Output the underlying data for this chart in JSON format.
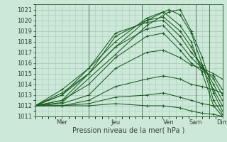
{
  "background_color": "#cce8d8",
  "grid_color": "#aaccbb",
  "line_color": "#1a5c20",
  "ylim": [
    1011,
    1021.5
  ],
  "xlim": [
    0,
    168
  ],
  "yticks": [
    1011,
    1012,
    1013,
    1014,
    1015,
    1016,
    1017,
    1018,
    1019,
    1020,
    1021
  ],
  "xtick_positions": [
    24,
    72,
    120,
    144,
    168
  ],
  "xtick_labels": [
    "Mer",
    "Jeu",
    "Ven",
    "Sam",
    "Dim"
  ],
  "xlabel": "Pression niveau de la mer( hPa )",
  "xlabel_fontsize": 7,
  "tick_fontsize": 6,
  "lines": [
    {
      "points": [
        [
          0,
          1012.0
        ],
        [
          24,
          1012.3
        ],
        [
          72,
          1016.8
        ],
        [
          100,
          1019.5
        ],
        [
          120,
          1020.8
        ],
        [
          130,
          1021.0
        ],
        [
          140,
          1019.0
        ],
        [
          150,
          1016.5
        ],
        [
          160,
          1013.2
        ],
        [
          168,
          1011.5
        ]
      ]
    },
    {
      "points": [
        [
          0,
          1012.0
        ],
        [
          24,
          1012.5
        ],
        [
          72,
          1017.5
        ],
        [
          100,
          1020.0
        ],
        [
          120,
          1021.0
        ],
        [
          130,
          1020.5
        ],
        [
          140,
          1018.8
        ],
        [
          150,
          1015.8
        ],
        [
          160,
          1012.5
        ],
        [
          168,
          1011.2
        ]
      ]
    },
    {
      "points": [
        [
          0,
          1012.0
        ],
        [
          24,
          1013.0
        ],
        [
          72,
          1018.0
        ],
        [
          100,
          1020.2
        ],
        [
          115,
          1020.8
        ],
        [
          130,
          1019.5
        ],
        [
          140,
          1018.0
        ],
        [
          150,
          1015.0
        ],
        [
          160,
          1012.0
        ],
        [
          168,
          1011.0
        ]
      ]
    },
    {
      "points": [
        [
          0,
          1012.0
        ],
        [
          24,
          1013.2
        ],
        [
          48,
          1015.0
        ],
        [
          72,
          1018.5
        ],
        [
          100,
          1020.0
        ],
        [
          115,
          1020.3
        ],
        [
          130,
          1019.0
        ],
        [
          140,
          1017.5
        ],
        [
          150,
          1015.5
        ],
        [
          160,
          1013.5
        ],
        [
          168,
          1012.0
        ]
      ]
    },
    {
      "points": [
        [
          0,
          1012.0
        ],
        [
          24,
          1013.5
        ],
        [
          48,
          1015.5
        ],
        [
          72,
          1018.8
        ],
        [
          100,
          1019.8
        ],
        [
          115,
          1020.0
        ],
        [
          130,
          1018.5
        ],
        [
          140,
          1017.0
        ],
        [
          150,
          1015.8
        ],
        [
          160,
          1014.0
        ],
        [
          168,
          1012.5
        ]
      ]
    },
    {
      "points": [
        [
          0,
          1012.0
        ],
        [
          24,
          1013.0
        ],
        [
          48,
          1015.0
        ],
        [
          72,
          1017.5
        ],
        [
          100,
          1019.2
        ],
        [
          115,
          1019.5
        ],
        [
          130,
          1017.8
        ],
        [
          140,
          1016.5
        ],
        [
          150,
          1015.5
        ],
        [
          160,
          1014.5
        ],
        [
          168,
          1013.0
        ]
      ]
    },
    {
      "points": [
        [
          0,
          1012.0
        ],
        [
          24,
          1012.5
        ],
        [
          48,
          1014.0
        ],
        [
          72,
          1016.5
        ],
        [
          100,
          1018.5
        ],
        [
          115,
          1018.8
        ],
        [
          130,
          1017.2
        ],
        [
          140,
          1016.0
        ],
        [
          150,
          1015.2
        ],
        [
          160,
          1014.8
        ],
        [
          168,
          1013.5
        ]
      ]
    },
    {
      "points": [
        [
          0,
          1012.0
        ],
        [
          24,
          1012.2
        ],
        [
          48,
          1013.0
        ],
        [
          72,
          1015.5
        ],
        [
          100,
          1017.0
        ],
        [
          115,
          1017.2
        ],
        [
          130,
          1016.5
        ],
        [
          140,
          1015.8
        ],
        [
          150,
          1015.5
        ],
        [
          160,
          1015.0
        ],
        [
          168,
          1014.5
        ]
      ]
    },
    {
      "points": [
        [
          0,
          1012.0
        ],
        [
          24,
          1012.0
        ],
        [
          48,
          1012.5
        ],
        [
          72,
          1013.8
        ],
        [
          100,
          1014.5
        ],
        [
          115,
          1014.8
        ],
        [
          130,
          1014.5
        ],
        [
          140,
          1014.0
        ],
        [
          150,
          1013.8
        ],
        [
          160,
          1013.5
        ],
        [
          168,
          1013.2
        ]
      ]
    },
    {
      "points": [
        [
          0,
          1012.0
        ],
        [
          24,
          1012.0
        ],
        [
          48,
          1012.2
        ],
        [
          72,
          1012.8
        ],
        [
          100,
          1013.0
        ],
        [
          115,
          1013.2
        ],
        [
          130,
          1012.8
        ],
        [
          140,
          1012.5
        ],
        [
          150,
          1012.2
        ],
        [
          160,
          1012.0
        ],
        [
          168,
          1012.0
        ]
      ]
    },
    {
      "points": [
        [
          0,
          1012.0
        ],
        [
          24,
          1012.0
        ],
        [
          48,
          1012.0
        ],
        [
          72,
          1012.2
        ],
        [
          100,
          1012.0
        ],
        [
          115,
          1012.0
        ],
        [
          130,
          1011.8
        ],
        [
          140,
          1011.5
        ],
        [
          150,
          1011.3
        ],
        [
          160,
          1011.2
        ],
        [
          168,
          1011.0
        ]
      ]
    }
  ]
}
